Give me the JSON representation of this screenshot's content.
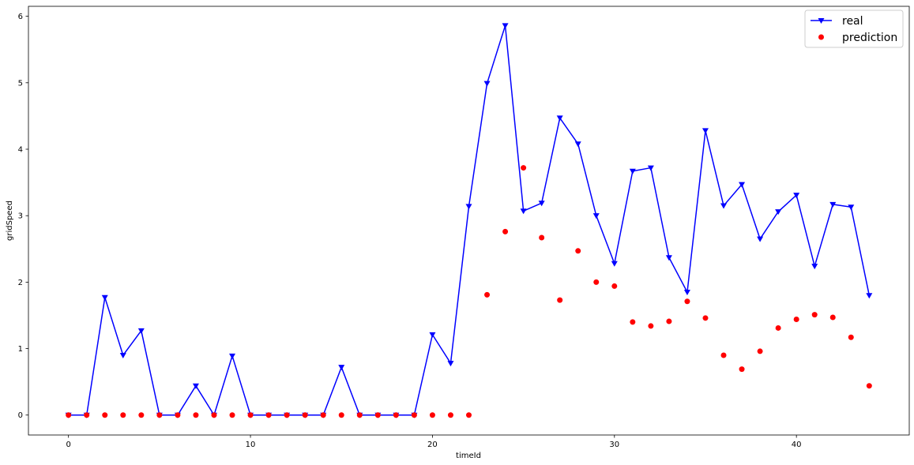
{
  "chart_data": {
    "type": "line",
    "xlabel": "timeId",
    "ylabel": "gridSpeed",
    "xlim": [
      -2.2,
      46.2
    ],
    "ylim": [
      -0.3,
      6.15
    ],
    "x_ticks": [
      0,
      10,
      20,
      30,
      40
    ],
    "y_ticks": [
      0,
      1,
      2,
      3,
      4,
      5,
      6
    ],
    "legend_position": "top-right",
    "grid": false,
    "series": [
      {
        "name": "real",
        "style": "line-with-markers",
        "marker": "triangle-down",
        "color": "#0000ff",
        "x": [
          0,
          1,
          2,
          3,
          4,
          5,
          6,
          7,
          8,
          9,
          10,
          11,
          12,
          13,
          14,
          15,
          16,
          17,
          18,
          19,
          20,
          21,
          22,
          23,
          24,
          25,
          26,
          27,
          28,
          29,
          30,
          31,
          32,
          33,
          34,
          35,
          36,
          37,
          38,
          39,
          40,
          41,
          42,
          43,
          44
        ],
        "values": [
          0,
          0,
          1.77,
          0.9,
          1.27,
          0,
          0,
          0.44,
          0,
          0.89,
          0,
          0,
          0,
          0,
          0,
          0.72,
          0,
          0,
          0,
          0,
          1.21,
          0.78,
          3.14,
          4.99,
          5.86,
          3.07,
          3.19,
          4.47,
          4.08,
          3.0,
          2.28,
          3.67,
          3.72,
          2.37,
          1.85,
          4.28,
          3.15,
          3.47,
          2.65,
          3.06,
          3.31,
          2.24,
          3.17,
          3.13,
          1.8
        ]
      },
      {
        "name": "prediction",
        "style": "scatter",
        "marker": "circle",
        "color": "#ff0000",
        "x": [
          0,
          1,
          2,
          3,
          4,
          5,
          6,
          7,
          8,
          9,
          10,
          11,
          12,
          13,
          14,
          15,
          16,
          17,
          18,
          19,
          20,
          21,
          22,
          23,
          24,
          25,
          26,
          27,
          28,
          29,
          30,
          31,
          32,
          33,
          34,
          35,
          36,
          37,
          38,
          39,
          40,
          41,
          42,
          43,
          44
        ],
        "values": [
          0,
          0,
          0,
          0,
          0,
          0,
          0,
          0,
          0,
          0,
          0,
          0,
          0,
          0,
          0,
          0,
          0,
          0,
          0,
          0,
          0,
          0,
          0,
          1.81,
          2.76,
          3.72,
          2.67,
          1.73,
          2.47,
          2.0,
          1.94,
          1.4,
          1.34,
          1.41,
          1.71,
          1.46,
          0.9,
          0.69,
          0.96,
          1.31,
          1.44,
          1.51,
          1.47,
          1.17,
          0.44
        ]
      }
    ]
  }
}
